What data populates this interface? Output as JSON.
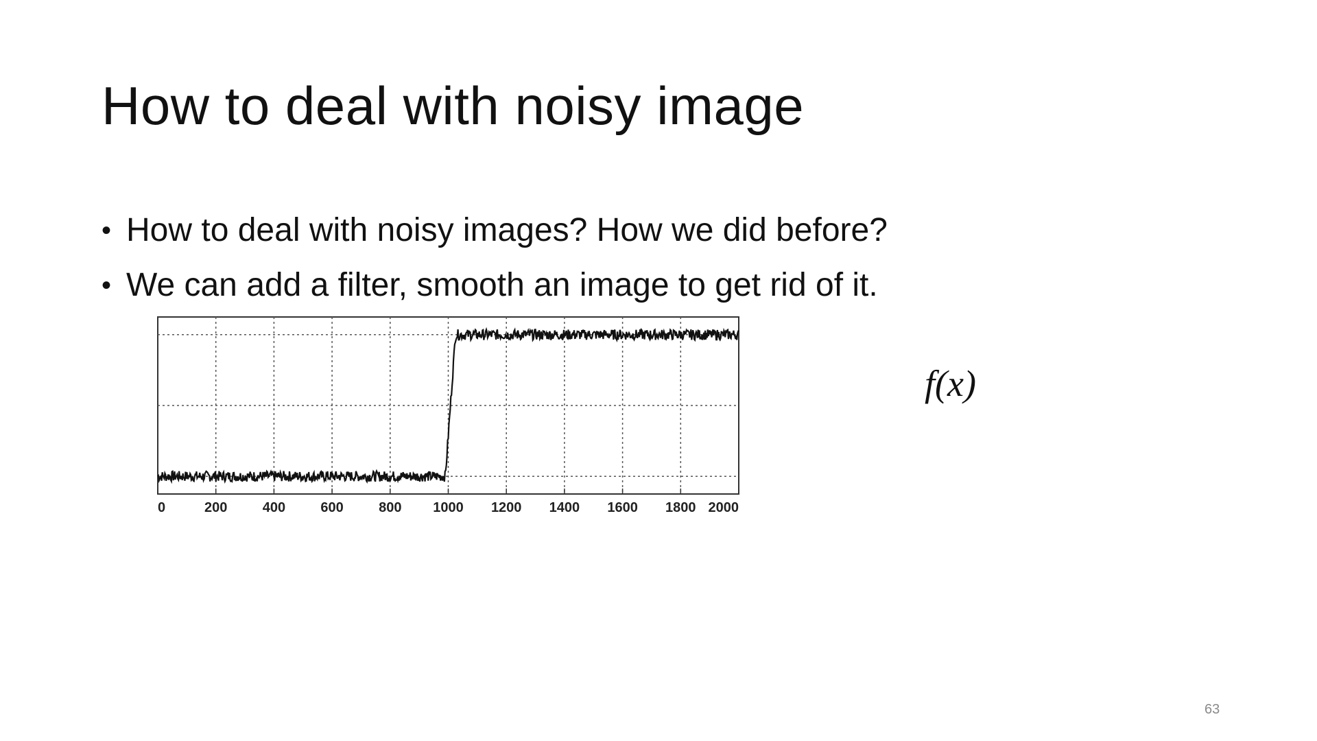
{
  "slide": {
    "title": "How to deal with noisy image",
    "bullets": [
      "How to deal with noisy images? How we did before?",
      "We can add a filter, smooth an image to get rid of it."
    ],
    "function_label": "f(x)",
    "page_number": "63"
  },
  "chart_data": {
    "type": "line",
    "title": "",
    "xlabel": "",
    "ylabel": "",
    "xlim": [
      0,
      2000
    ],
    "ylim": [
      0,
      1
    ],
    "x_ticks": [
      "0",
      "200",
      "400",
      "600",
      "800",
      "1000",
      "1200",
      "1400",
      "1600",
      "1800",
      "2000"
    ],
    "grid": true,
    "series": [
      {
        "x": [
          0,
          990,
          1025,
          2000
        ],
        "y": [
          0.1,
          0.1,
          0.9,
          0.9
        ],
        "noise_amplitude": 0.03,
        "color": "#111111"
      }
    ]
  }
}
